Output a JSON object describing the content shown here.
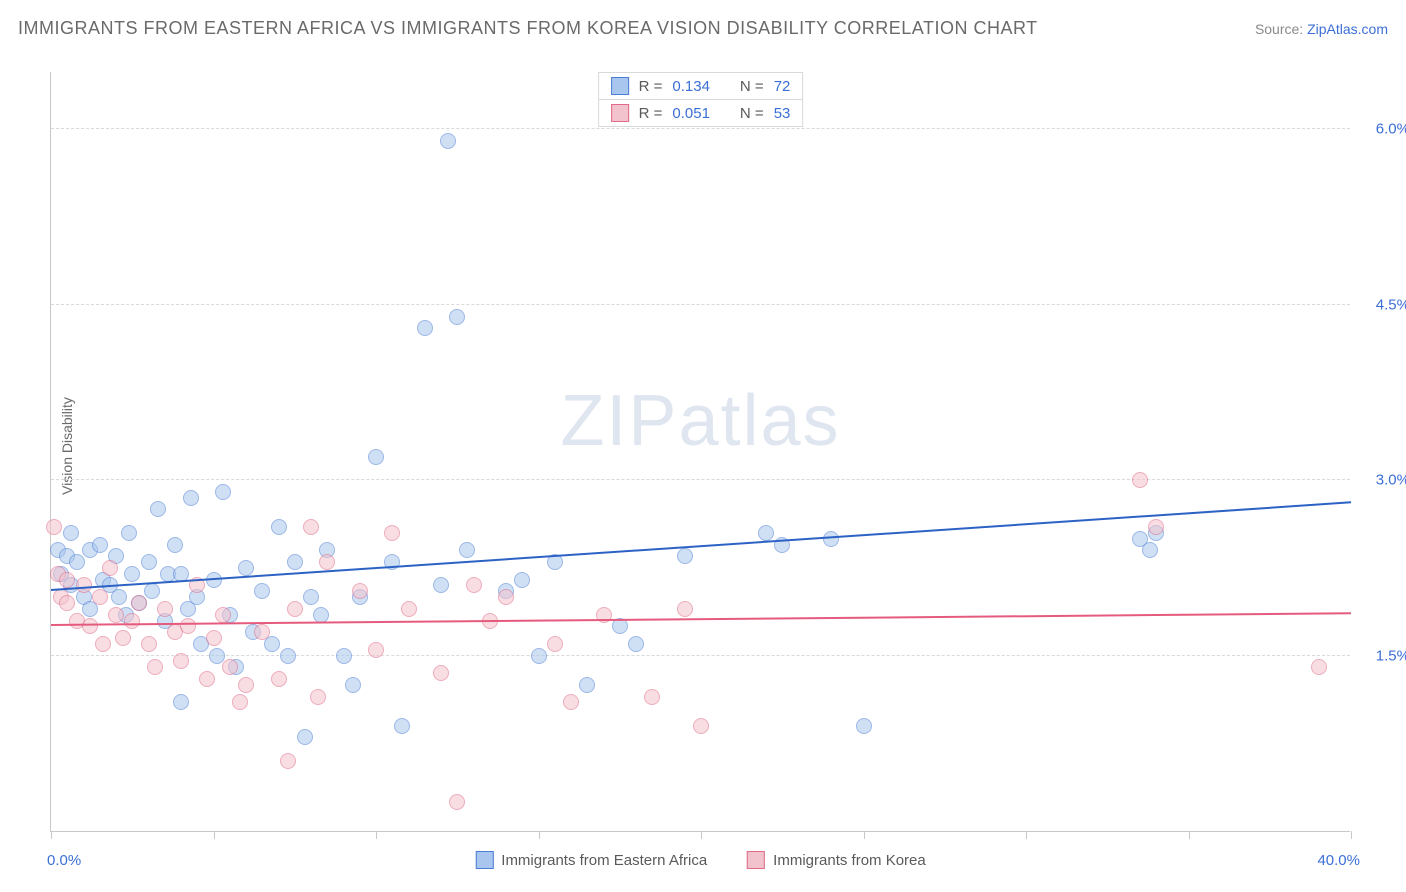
{
  "title": "IMMIGRANTS FROM EASTERN AFRICA VS IMMIGRANTS FROM KOREA VISION DISABILITY CORRELATION CHART",
  "source_label": "Source: ",
  "source_link_text": "ZipAtlas.com",
  "watermark_a": "ZIP",
  "watermark_b": "atlas",
  "y_axis_title": "Vision Disability",
  "chart": {
    "type": "scatter",
    "background_color": "#ffffff",
    "grid_color": "#d9d9d9",
    "axis_color": "#c8c8c8",
    "xlim": [
      0,
      40
    ],
    "ylim": [
      0,
      6.5
    ],
    "x_min_label": "0.0%",
    "x_max_label": "40.0%",
    "y_ticks": [
      1.5,
      3.0,
      4.5,
      6.0
    ],
    "y_tick_labels": [
      "1.5%",
      "3.0%",
      "4.5%",
      "6.0%"
    ],
    "x_tick_positions": [
      0,
      5,
      10,
      15,
      20,
      25,
      30,
      35,
      40
    ],
    "marker_radius": 8,
    "marker_opacity": 0.55,
    "trendline_width": 2.5,
    "series": [
      {
        "name": "Immigrants from Eastern Africa",
        "color_fill": "#a9c7ee",
        "color_stroke": "#4c7dd4",
        "r_value": "0.134",
        "n_value": "72",
        "trend": {
          "x1": 0,
          "y1": 2.05,
          "x2": 40,
          "y2": 2.8,
          "color": "#2d62c5"
        },
        "points": [
          [
            0.2,
            2.4
          ],
          [
            0.3,
            2.2
          ],
          [
            0.5,
            2.35
          ],
          [
            0.6,
            2.55
          ],
          [
            0.6,
            2.1
          ],
          [
            0.8,
            2.3
          ],
          [
            1.0,
            2.0
          ],
          [
            1.2,
            2.4
          ],
          [
            1.2,
            1.9
          ],
          [
            1.5,
            2.45
          ],
          [
            1.6,
            2.15
          ],
          [
            1.8,
            2.1
          ],
          [
            2.0,
            2.35
          ],
          [
            2.1,
            2.0
          ],
          [
            2.3,
            1.85
          ],
          [
            2.4,
            2.55
          ],
          [
            2.5,
            2.2
          ],
          [
            2.7,
            1.95
          ],
          [
            3.0,
            2.3
          ],
          [
            3.1,
            2.05
          ],
          [
            3.3,
            2.75
          ],
          [
            3.5,
            1.8
          ],
          [
            3.6,
            2.2
          ],
          [
            3.8,
            2.45
          ],
          [
            4.0,
            1.1
          ],
          [
            4.0,
            2.2
          ],
          [
            4.2,
            1.9
          ],
          [
            4.3,
            2.85
          ],
          [
            4.5,
            2.0
          ],
          [
            4.6,
            1.6
          ],
          [
            5.0,
            2.15
          ],
          [
            5.1,
            1.5
          ],
          [
            5.3,
            2.9
          ],
          [
            5.5,
            1.85
          ],
          [
            5.7,
            1.4
          ],
          [
            6.0,
            2.25
          ],
          [
            6.2,
            1.7
          ],
          [
            6.5,
            2.05
          ],
          [
            6.8,
            1.6
          ],
          [
            7.0,
            2.6
          ],
          [
            7.3,
            1.5
          ],
          [
            7.5,
            2.3
          ],
          [
            7.8,
            0.8
          ],
          [
            8.0,
            2.0
          ],
          [
            8.3,
            1.85
          ],
          [
            8.5,
            2.4
          ],
          [
            9.0,
            1.5
          ],
          [
            9.3,
            1.25
          ],
          [
            9.5,
            2.0
          ],
          [
            10.0,
            3.2
          ],
          [
            10.5,
            2.3
          ],
          [
            10.8,
            0.9
          ],
          [
            11.5,
            4.3
          ],
          [
            12.0,
            2.1
          ],
          [
            12.2,
            5.9
          ],
          [
            12.5,
            4.4
          ],
          [
            12.8,
            2.4
          ],
          [
            14.0,
            2.05
          ],
          [
            14.5,
            2.15
          ],
          [
            15.0,
            1.5
          ],
          [
            15.5,
            2.3
          ],
          [
            16.5,
            1.25
          ],
          [
            17.5,
            1.75
          ],
          [
            18.0,
            1.6
          ],
          [
            19.5,
            2.35
          ],
          [
            22.0,
            2.55
          ],
          [
            22.5,
            2.45
          ],
          [
            24.0,
            2.5
          ],
          [
            25.0,
            0.9
          ],
          [
            33.5,
            2.5
          ],
          [
            33.8,
            2.4
          ],
          [
            34.0,
            2.55
          ]
        ]
      },
      {
        "name": "Immigrants from Korea",
        "color_fill": "#f3c3cd",
        "color_stroke": "#e06a87",
        "r_value": "0.051",
        "n_value": "53",
        "trend": {
          "x1": 0,
          "y1": 1.75,
          "x2": 40,
          "y2": 1.85,
          "color": "#e55b7e"
        },
        "points": [
          [
            0.1,
            2.6
          ],
          [
            0.2,
            2.2
          ],
          [
            0.3,
            2.0
          ],
          [
            0.5,
            2.15
          ],
          [
            0.5,
            1.95
          ],
          [
            0.8,
            1.8
          ],
          [
            1.0,
            2.1
          ],
          [
            1.2,
            1.75
          ],
          [
            1.5,
            2.0
          ],
          [
            1.6,
            1.6
          ],
          [
            1.8,
            2.25
          ],
          [
            2.0,
            1.85
          ],
          [
            2.2,
            1.65
          ],
          [
            2.5,
            1.8
          ],
          [
            2.7,
            1.95
          ],
          [
            3.0,
            1.6
          ],
          [
            3.2,
            1.4
          ],
          [
            3.5,
            1.9
          ],
          [
            3.8,
            1.7
          ],
          [
            4.0,
            1.45
          ],
          [
            4.2,
            1.75
          ],
          [
            4.5,
            2.1
          ],
          [
            4.8,
            1.3
          ],
          [
            5.0,
            1.65
          ],
          [
            5.3,
            1.85
          ],
          [
            5.5,
            1.4
          ],
          [
            5.8,
            1.1
          ],
          [
            6.0,
            1.25
          ],
          [
            6.5,
            1.7
          ],
          [
            7.0,
            1.3
          ],
          [
            7.3,
            0.6
          ],
          [
            7.5,
            1.9
          ],
          [
            8.0,
            2.6
          ],
          [
            8.2,
            1.15
          ],
          [
            8.5,
            2.3
          ],
          [
            9.5,
            2.05
          ],
          [
            10.0,
            1.55
          ],
          [
            10.5,
            2.55
          ],
          [
            11.0,
            1.9
          ],
          [
            12.0,
            1.35
          ],
          [
            12.5,
            0.25
          ],
          [
            13.0,
            2.1
          ],
          [
            13.5,
            1.8
          ],
          [
            14.0,
            2.0
          ],
          [
            15.5,
            1.6
          ],
          [
            16.0,
            1.1
          ],
          [
            17.0,
            1.85
          ],
          [
            18.5,
            1.15
          ],
          [
            19.5,
            1.9
          ],
          [
            20.0,
            0.9
          ],
          [
            33.5,
            3.0
          ],
          [
            34.0,
            2.6
          ],
          [
            39.0,
            1.4
          ]
        ]
      }
    ]
  },
  "stats_legend": {
    "r_label": "R =",
    "n_label": "N ="
  }
}
